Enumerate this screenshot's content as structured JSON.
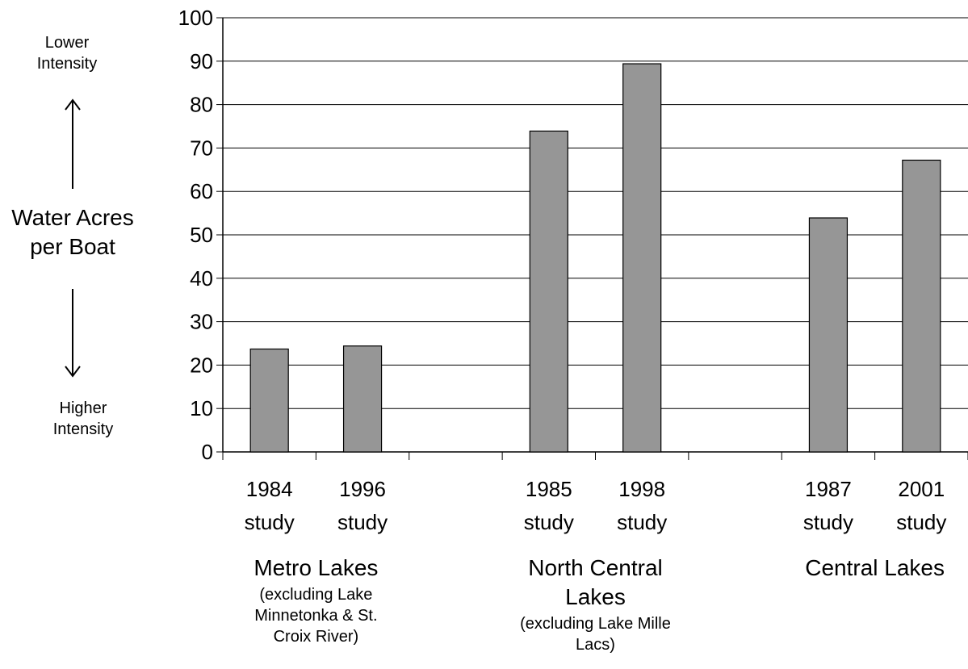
{
  "side_labels": {
    "top": [
      "Lower",
      "Intensity"
    ],
    "middle": [
      "Water Acres",
      "per Boat"
    ],
    "bottom": [
      "Higher",
      "Intensity"
    ]
  },
  "arrows": {
    "up": "arrow-up-icon",
    "down": "arrow-down-icon"
  },
  "chart_data": {
    "type": "bar",
    "ylim": [
      0,
      100
    ],
    "yticks": [
      0,
      10,
      20,
      30,
      40,
      50,
      60,
      70,
      80,
      90,
      100
    ],
    "grid": true,
    "bar_color": "#969696",
    "groups": [
      {
        "name_lines": [
          "Metro Lakes"
        ],
        "note_lines": [
          "(excluding Lake",
          "Minnetonka & St.",
          "Croix River)"
        ],
        "bars": [
          {
            "label": [
              "1984",
              "study"
            ],
            "value": 23.7
          },
          {
            "label": [
              "1996",
              "study"
            ],
            "value": 24.4
          }
        ]
      },
      {
        "name_lines": [
          "North Central",
          "Lakes"
        ],
        "note_lines": [
          "(excluding Lake Mille",
          "Lacs)"
        ],
        "bars": [
          {
            "label": [
              "1985",
              "study"
            ],
            "value": 73.9
          },
          {
            "label": [
              "1998",
              "study"
            ],
            "value": 89.4
          }
        ]
      },
      {
        "name_lines": [
          "Central  Lakes"
        ],
        "note_lines": [],
        "bars": [
          {
            "label": [
              "1987",
              "study"
            ],
            "value": 53.9
          },
          {
            "label": [
              "2001",
              "study"
            ],
            "value": 67.2
          }
        ]
      }
    ]
  }
}
